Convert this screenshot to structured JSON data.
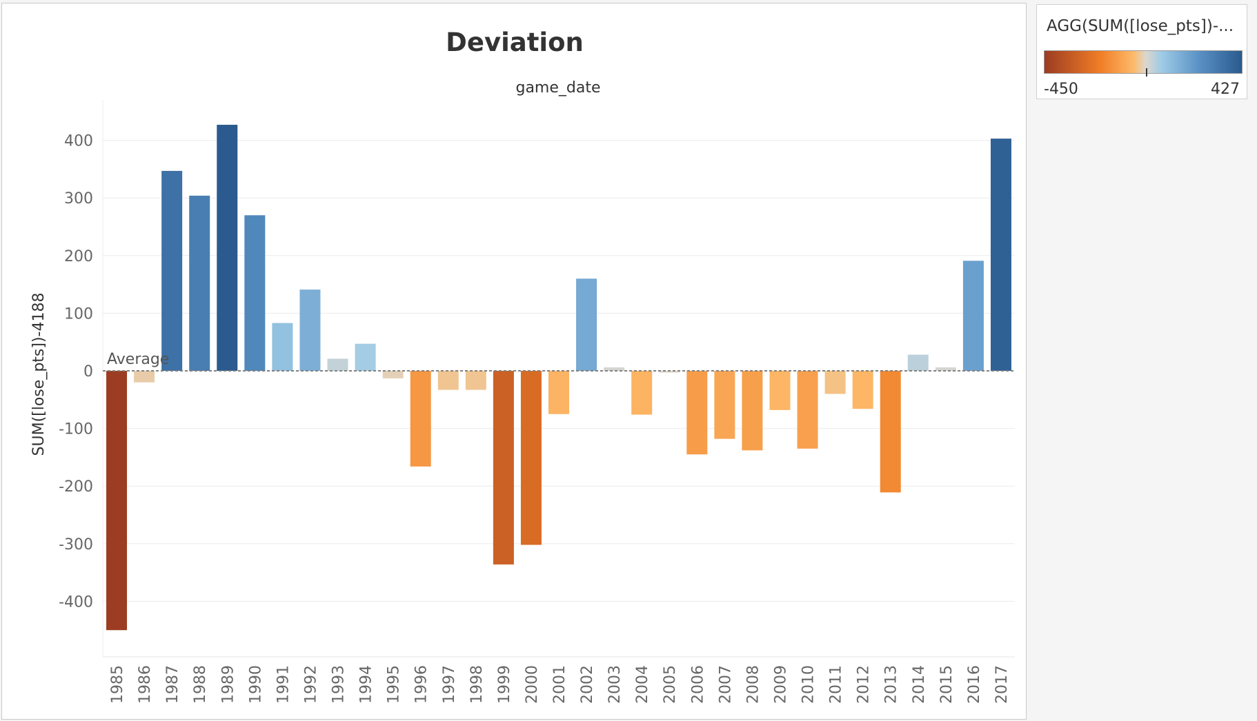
{
  "chart_data": {
    "type": "bar",
    "title": "Deviation",
    "column_header": "game_date",
    "ylabel": "SUM([lose_pts])-4188",
    "ylim": [
      -465,
      465
    ],
    "y_ticks": [
      -400,
      -300,
      -200,
      -100,
      0,
      100,
      200,
      300,
      400
    ],
    "reference_line": {
      "label": "Average",
      "value": 0
    },
    "categories": [
      "1985",
      "1986",
      "1987",
      "1988",
      "1989",
      "1990",
      "1991",
      "1992",
      "1993",
      "1994",
      "1995",
      "1996",
      "1997",
      "1998",
      "1999",
      "2000",
      "2001",
      "2002",
      "2003",
      "2004",
      "2005",
      "2006",
      "2007",
      "2008",
      "2009",
      "2010",
      "2011",
      "2012",
      "2013",
      "2014",
      "2015",
      "2016",
      "2017"
    ],
    "values": [
      -450,
      -20,
      347,
      304,
      427,
      270,
      83,
      141,
      21,
      47,
      -13,
      -166,
      -33,
      -33,
      -336,
      -302,
      -75,
      160,
      6,
      -76,
      -3,
      -145,
      -118,
      -138,
      -68,
      -135,
      -40,
      -66,
      -211,
      28,
      6,
      191,
      403
    ],
    "grid": true
  },
  "legend": {
    "title": "AGG(SUM([lose_pts])-...",
    "min_label": "-450",
    "max_label": "427",
    "min": -450,
    "max": 427,
    "colors": {
      "neg_dark": "#9c3c22",
      "neg_mid": "#f07d26",
      "neg_light": "#fdba6a",
      "neutral": "#dcd7ce",
      "pos_light": "#9fcbe6",
      "pos_mid": "#5a92c6",
      "pos_dark": "#2a5a8e"
    }
  }
}
